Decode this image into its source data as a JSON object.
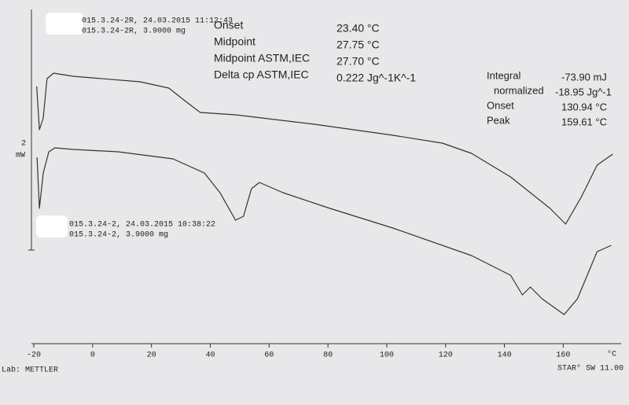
{
  "chart_data": {
    "type": "line",
    "xlim": [
      -20,
      177
    ],
    "ylim": [
      0,
      21
    ],
    "xticks": [
      -20,
      0,
      20,
      40,
      60,
      80,
      100,
      120,
      140,
      160
    ],
    "x_unit": "°C",
    "scale_bar": {
      "value": 2,
      "unit": "mW"
    },
    "footer_left": "Lab: METTLER",
    "footer_right": "STAR° SW 11.00",
    "glass_transition": [
      {
        "label": "Onset",
        "value": "23.40 °C"
      },
      {
        "label": "Midpoint",
        "value": "27.75 °C"
      },
      {
        "label": "Midpoint ASTM,IEC",
        "value": "27.70 °C"
      },
      {
        "label": "Delta cp ASTM,IEC",
        "value": "0.222 Jg^-1K^-1"
      }
    ],
    "peak_integration": [
      {
        "label": "Integral",
        "value": "-73.90 mJ"
      },
      {
        "label": "normalized",
        "value": "-18.95 Jg^-1"
      },
      {
        "label": "Onset",
        "value": "130.94 °C"
      },
      {
        "label": "Peak",
        "value": "159.61 °C"
      }
    ],
    "series": [
      {
        "name": "015.3.24-2R, 24.03.2015 11:12:43",
        "sample": "015.3.24-2R, 3.9000 mg",
        "color": "#333333",
        "x": [
          -19,
          -18.1,
          -16.8,
          -15.5,
          -13.3,
          -6.6,
          16.1,
          25.9,
          31.3,
          36.6,
          48.6,
          75.4,
          102.1,
          118.9,
          128.8,
          142.1,
          155.5,
          160.8,
          166.2,
          171.5,
          176.8
        ],
        "values": [
          16,
          13.25,
          14,
          16.5,
          16.85,
          16.65,
          16.3,
          15.9,
          15.1,
          14.35,
          14.2,
          13.6,
          12.9,
          12.4,
          11.75,
          10.25,
          8.25,
          7.25,
          9,
          11,
          11.7
        ]
      },
      {
        "name": "015.3.24-2, 24.03.2015 10:38:22",
        "sample": "015.3.24-2, 3.9000 mg",
        "color": "#333333",
        "x": [
          -18.9,
          -18.1,
          -16.8,
          -14.9,
          -12.8,
          -6.6,
          8.6,
          27.3,
          38,
          43.3,
          48.6,
          51.3,
          54,
          56.7,
          64.7,
          80.7,
          102.1,
          128.8,
          142.1,
          146.1,
          148.8,
          152.8,
          160.3,
          164.8,
          171.5,
          176.3
        ],
        "values": [
          11.5,
          8.25,
          10.5,
          11.85,
          12.1,
          12,
          11.85,
          11.4,
          10.5,
          9.25,
          7.5,
          7.75,
          9.5,
          9.9,
          9.25,
          8.25,
          7,
          5.25,
          4,
          2.75,
          3.25,
          2.5,
          1.5,
          2.5,
          5.5,
          5.9
        ]
      }
    ]
  }
}
